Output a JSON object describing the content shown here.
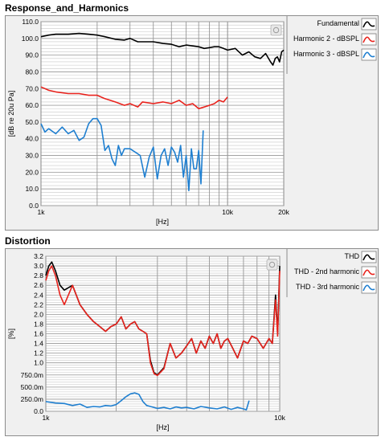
{
  "panels": [
    {
      "title": "Response_and_Harmonics"
    },
    {
      "title": "Distortion"
    }
  ],
  "chart_data": [
    {
      "type": "line",
      "title": "Response_and_Harmonics",
      "xlabel": "[Hz]",
      "ylabel": "[dB re 20u Pa]",
      "x_scale": "log",
      "xlim": [
        1000,
        20000
      ],
      "ylim": [
        0,
        110
      ],
      "x_ticks": [
        1000,
        10000,
        20000
      ],
      "x_tick_labels": [
        "1k",
        "10k",
        "20k"
      ],
      "y_ticks": [
        0,
        10,
        20,
        30,
        40,
        50,
        60,
        70,
        80,
        90,
        100,
        110
      ],
      "y_tick_labels": [
        "0.0",
        "10.0",
        "20.0",
        "30.0",
        "40.0",
        "50.0",
        "60.0",
        "70.0",
        "80.0",
        "90.0",
        "100.0",
        "110.0"
      ],
      "grid": true,
      "legend_position": "right",
      "series": [
        {
          "name": "Fundamental",
          "color": "#000000",
          "x": [
            1000,
            1100,
            1200,
            1400,
            1600,
            1800,
            2000,
            2200,
            2500,
            2800,
            3000,
            3300,
            3500,
            4000,
            4500,
            5000,
            5500,
            6000,
            6500,
            7000,
            7500,
            8000,
            8500,
            9000,
            9500,
            10000,
            11000,
            12000,
            13000,
            14000,
            15000,
            16000,
            17000,
            17500,
            18000,
            18500,
            19000,
            19500,
            20000
          ],
          "y": [
            101,
            102,
            102.5,
            102.5,
            103,
            102.5,
            102,
            101,
            99.5,
            99,
            100,
            98,
            98,
            98,
            97,
            96.5,
            95,
            96,
            95.5,
            95,
            94,
            94.5,
            95,
            95,
            94,
            93,
            94,
            90,
            92,
            89,
            88,
            91,
            86,
            84,
            88,
            89,
            86,
            92,
            93
          ]
        },
        {
          "name": "Harmonic 2 - dBSPL",
          "color": "#e8231d",
          "x": [
            1000,
            1100,
            1200,
            1400,
            1600,
            1800,
            2000,
            2200,
            2500,
            2800,
            3000,
            3300,
            3500,
            4000,
            4500,
            5000,
            5500,
            6000,
            6500,
            7000,
            7500,
            8000,
            8500,
            9000,
            9500,
            10000
          ],
          "y": [
            71,
            69,
            68,
            67,
            67,
            66,
            66,
            64,
            62,
            60,
            61,
            59,
            62,
            61,
            62,
            61,
            63,
            60,
            61,
            58,
            59,
            60,
            61,
            63,
            62,
            65
          ]
        },
        {
          "name": "Harmonic 3 - dBSPL",
          "color": "#1f7fd0",
          "x": [
            1000,
            1050,
            1100,
            1200,
            1300,
            1400,
            1500,
            1600,
            1700,
            1800,
            1900,
            2000,
            2100,
            2200,
            2300,
            2400,
            2500,
            2600,
            2700,
            2800,
            3000,
            3200,
            3400,
            3600,
            3800,
            4000,
            4200,
            4400,
            4600,
            4800,
            5000,
            5200,
            5400,
            5600,
            5800,
            6000,
            6200,
            6400,
            6600,
            6800,
            7000,
            7200,
            7400
          ],
          "y": [
            49,
            44,
            46,
            43,
            47,
            43,
            45,
            39,
            41,
            49,
            52,
            52,
            48,
            33,
            36,
            28,
            24,
            36,
            30,
            34,
            34,
            32,
            30,
            17,
            29,
            35,
            16,
            30,
            34,
            24,
            35,
            32,
            26,
            36,
            17,
            30,
            9,
            34,
            22,
            22,
            33,
            13,
            45
          ]
        }
      ]
    },
    {
      "type": "line",
      "title": "Distortion",
      "xlabel": "[Hz]",
      "ylabel": "[%]",
      "x_scale": "log",
      "xlim": [
        1000,
        10000
      ],
      "ylim": [
        0,
        3.2
      ],
      "x_ticks": [
        1000,
        10000
      ],
      "x_tick_labels": [
        "1k",
        "10k"
      ],
      "y_ticks": [
        0,
        0.25,
        0.5,
        0.75,
        1.0,
        1.2,
        1.4,
        1.6,
        1.8,
        2.0,
        2.2,
        2.4,
        2.6,
        2.8,
        3.0,
        3.2
      ],
      "y_tick_labels": [
        "0.0",
        "250.0m",
        "500.0m",
        "750.0m",
        "1.0",
        "1.2",
        "1.4",
        "1.6",
        "1.8",
        "2.0",
        "2.2",
        "2.4",
        "2.6",
        "2.8",
        "3.0",
        "3.2"
      ],
      "grid": true,
      "legend_position": "right",
      "series": [
        {
          "name": "THD",
          "color": "#000000",
          "x": [
            1000,
            1030,
            1060,
            1100,
            1150,
            1200,
            1300,
            1400,
            1500,
            1600,
            1700,
            1800,
            1900,
            2000,
            2100,
            2200,
            2300,
            2400,
            2500,
            2600,
            2700,
            2800,
            2900,
            3000,
            3200,
            3400,
            3600,
            3800,
            4000,
            4200,
            4400,
            4600,
            4800,
            5000,
            5200,
            5400,
            5600,
            5800,
            6000,
            6300,
            6600,
            7000,
            7300,
            7600,
            8000,
            8500,
            9000,
            9300,
            9600,
            9800,
            10000
          ],
          "y": [
            2.8,
            3.0,
            3.08,
            2.9,
            2.6,
            2.5,
            2.6,
            2.2,
            2.0,
            1.85,
            1.75,
            1.65,
            1.75,
            1.8,
            1.95,
            1.7,
            1.8,
            1.85,
            1.7,
            1.65,
            1.6,
            1.05,
            0.8,
            0.75,
            0.9,
            1.4,
            1.1,
            1.2,
            1.35,
            1.5,
            1.2,
            1.45,
            1.3,
            1.55,
            1.4,
            1.6,
            1.3,
            1.45,
            1.5,
            1.3,
            1.1,
            1.45,
            1.4,
            1.55,
            1.5,
            1.3,
            1.5,
            1.4,
            2.4,
            1.6,
            3.0
          ]
        },
        {
          "name": "THD - 2nd harmonic",
          "color": "#e8231d",
          "x": [
            1000,
            1030,
            1060,
            1100,
            1150,
            1200,
            1300,
            1400,
            1500,
            1600,
            1700,
            1800,
            1900,
            2000,
            2100,
            2200,
            2300,
            2400,
            2500,
            2600,
            2700,
            2800,
            2900,
            3000,
            3200,
            3400,
            3600,
            3800,
            4000,
            4200,
            4400,
            4600,
            4800,
            5000,
            5200,
            5400,
            5600,
            5800,
            6000,
            6300,
            6600,
            7000,
            7300,
            7600,
            8000,
            8500,
            9000,
            9300,
            9600,
            9800,
            10000
          ],
          "y": [
            2.7,
            2.9,
            3.0,
            2.8,
            2.4,
            2.2,
            2.6,
            2.2,
            2.0,
            1.85,
            1.75,
            1.65,
            1.75,
            1.8,
            1.95,
            1.7,
            1.8,
            1.85,
            1.7,
            1.65,
            1.6,
            1.0,
            0.78,
            0.74,
            0.88,
            1.4,
            1.1,
            1.2,
            1.35,
            1.5,
            1.2,
            1.45,
            1.3,
            1.55,
            1.4,
            1.6,
            1.3,
            1.45,
            1.5,
            1.3,
            1.1,
            1.45,
            1.4,
            1.55,
            1.5,
            1.3,
            1.5,
            1.4,
            2.3,
            1.55,
            2.9
          ]
        },
        {
          "name": "THD - 3rd harmonic",
          "color": "#1f7fd0",
          "x": [
            1000,
            1100,
            1200,
            1300,
            1400,
            1500,
            1600,
            1700,
            1800,
            1900,
            2000,
            2100,
            2200,
            2300,
            2400,
            2500,
            2600,
            2700,
            2800,
            3000,
            3200,
            3400,
            3600,
            3800,
            4000,
            4300,
            4600,
            5000,
            5400,
            5800,
            6200,
            6600,
            7000,
            7200,
            7400
          ],
          "y": [
            0.2,
            0.17,
            0.16,
            0.12,
            0.15,
            0.08,
            0.1,
            0.09,
            0.12,
            0.11,
            0.14,
            0.22,
            0.3,
            0.36,
            0.38,
            0.35,
            0.2,
            0.12,
            0.1,
            0.06,
            0.08,
            0.05,
            0.09,
            0.07,
            0.08,
            0.05,
            0.1,
            0.07,
            0.05,
            0.09,
            0.04,
            0.08,
            0.05,
            0.03,
            0.22
          ]
        }
      ]
    }
  ]
}
